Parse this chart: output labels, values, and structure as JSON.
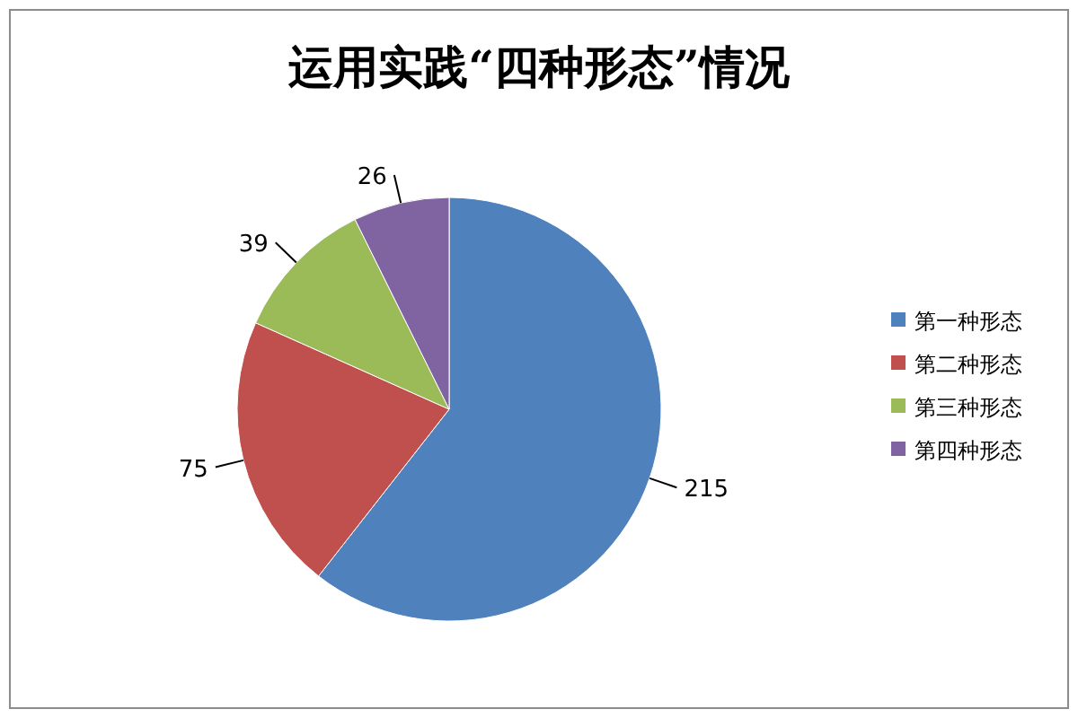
{
  "chart_data": {
    "type": "pie",
    "title": "运用实践“四种形态”情况",
    "categories": [
      "第一种形态",
      "第二种形态",
      "第三种形态",
      "第四种形态"
    ],
    "values": [
      215,
      75,
      39,
      26
    ],
    "colors": [
      "#4f81bd",
      "#c0504d",
      "#9bbb59",
      "#8064a2"
    ],
    "data_labels": true,
    "legend": "right"
  }
}
